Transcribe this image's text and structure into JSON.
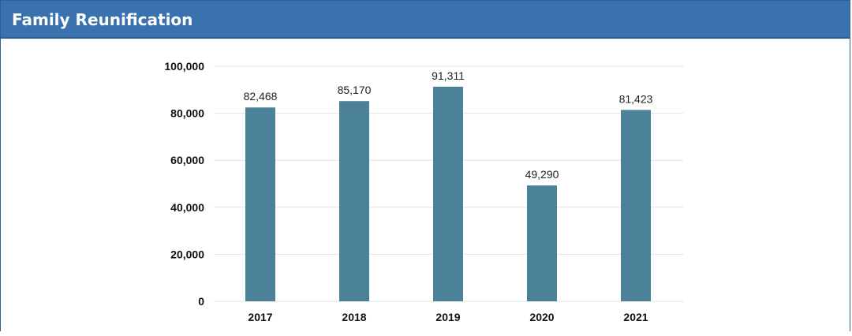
{
  "header": {
    "title": "Family Reunification"
  },
  "colors": {
    "header_bg": "#3a72af",
    "bar": "#4b8299",
    "gridline": "#e2e2e2"
  },
  "chart_data": {
    "type": "bar",
    "title": "",
    "xlabel": "",
    "ylabel": "",
    "categories": [
      "2017",
      "2018",
      "2019",
      "2020",
      "2021"
    ],
    "values": [
      82468,
      85170,
      91311,
      49290,
      81423
    ],
    "value_labels": [
      "82,468",
      "85,170",
      "91,311",
      "49,290",
      "81,423"
    ],
    "y_ticks": [
      0,
      20000,
      40000,
      60000,
      80000,
      100000
    ],
    "y_tick_labels": [
      "0",
      "20,000",
      "40,000",
      "60,000",
      "80,000",
      "100,000"
    ],
    "ylim": [
      0,
      100000
    ],
    "grid": true,
    "legend": false
  }
}
